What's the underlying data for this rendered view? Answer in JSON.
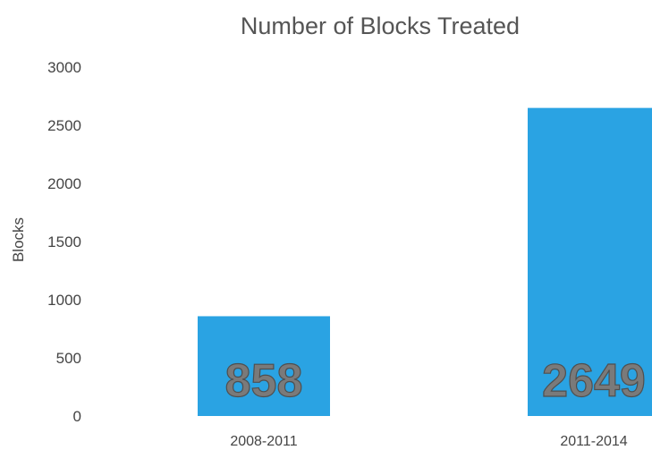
{
  "chart_data": {
    "type": "bar",
    "title": "Number of Blocks Treated",
    "xlabel": "",
    "ylabel": "Blocks",
    "categories": [
      "2008-2011",
      "2011-2014"
    ],
    "values": [
      858,
      2649
    ],
    "data_labels": [
      "858",
      "2649"
    ],
    "ylim": [
      0,
      3000
    ],
    "yticks": [
      "0",
      "500",
      "1000",
      "1500",
      "2000",
      "2500",
      "3000"
    ],
    "grid": false,
    "legend": "none",
    "bar_color": "#2aa3e3"
  }
}
